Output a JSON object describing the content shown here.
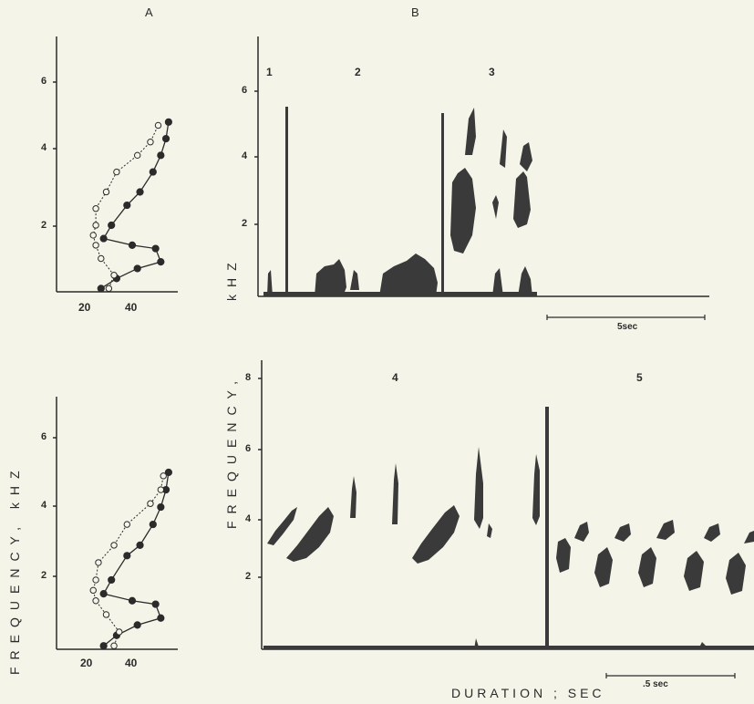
{
  "panel_labels": {
    "a": "A",
    "b": "B"
  },
  "y_axis_label_left": "FREQUENCY, kHZ",
  "y_axis_label_kHz": "kHZ",
  "y_axis_label_freq": "FREQUENCY,",
  "x_axis_label": "DURATION ; SEC",
  "scale_bars": {
    "top": "5sec",
    "bottom": ".5 sec"
  },
  "segment_numbers": [
    "1",
    "2",
    "3",
    "4",
    "5"
  ],
  "chart_data": [
    {
      "type": "line",
      "panel": "A-top",
      "x_ticks": [
        "20",
        "40"
      ],
      "y_ticks": [
        "2",
        "4",
        "6"
      ],
      "series": [
        {
          "style": "filled",
          "points": [
            [
              28,
              0.1
            ],
            [
              34,
              0.4
            ],
            [
              42,
              0.7
            ],
            [
              51,
              0.9
            ],
            [
              49,
              1.3
            ],
            [
              40,
              1.4
            ],
            [
              29,
              1.6
            ],
            [
              32,
              2.0
            ],
            [
              38,
              2.6
            ],
            [
              43,
              3.0
            ],
            [
              48,
              3.6
            ],
            [
              51,
              4.1
            ],
            [
              53,
              4.6
            ],
            [
              54,
              5.1
            ]
          ]
        },
        {
          "style": "open",
          "points": [
            [
              31,
              0.1
            ],
            [
              33,
              0.5
            ],
            [
              28,
              1.0
            ],
            [
              26,
              1.4
            ],
            [
              25,
              1.7
            ],
            [
              26,
              2.0
            ],
            [
              26,
              2.5
            ],
            [
              30,
              3.0
            ],
            [
              34,
              3.6
            ],
            [
              42,
              4.1
            ],
            [
              47,
              4.5
            ],
            [
              50,
              5.0
            ]
          ]
        }
      ]
    },
    {
      "type": "line",
      "panel": "A-bottom",
      "x_ticks": [
        "20",
        "40"
      ],
      "y_ticks": [
        "2",
        "4",
        "6"
      ],
      "series": [
        {
          "style": "filled",
          "points": [
            [
              29,
              0.1
            ],
            [
              34,
              0.4
            ],
            [
              42,
              0.7
            ],
            [
              51,
              0.9
            ],
            [
              49,
              1.3
            ],
            [
              40,
              1.4
            ],
            [
              29,
              1.6
            ],
            [
              32,
              2.0
            ],
            [
              38,
              2.7
            ],
            [
              43,
              3.0
            ],
            [
              48,
              3.6
            ],
            [
              51,
              4.1
            ],
            [
              53,
              4.6
            ],
            [
              54,
              5.1
            ]
          ]
        },
        {
          "style": "open",
          "points": [
            [
              33,
              0.1
            ],
            [
              35,
              0.5
            ],
            [
              30,
              1.0
            ],
            [
              26,
              1.4
            ],
            [
              25,
              1.7
            ],
            [
              26,
              2.0
            ],
            [
              27,
              2.5
            ],
            [
              33,
              3.0
            ],
            [
              38,
              3.6
            ],
            [
              47,
              4.2
            ],
            [
              51,
              4.6
            ],
            [
              52,
              5.0
            ]
          ]
        }
      ]
    }
  ],
  "spectrogram_axes": {
    "top_y_ticks": [
      "2",
      "4",
      "6"
    ],
    "bottom_y_ticks": [
      "2",
      "4",
      "6",
      "8"
    ]
  }
}
